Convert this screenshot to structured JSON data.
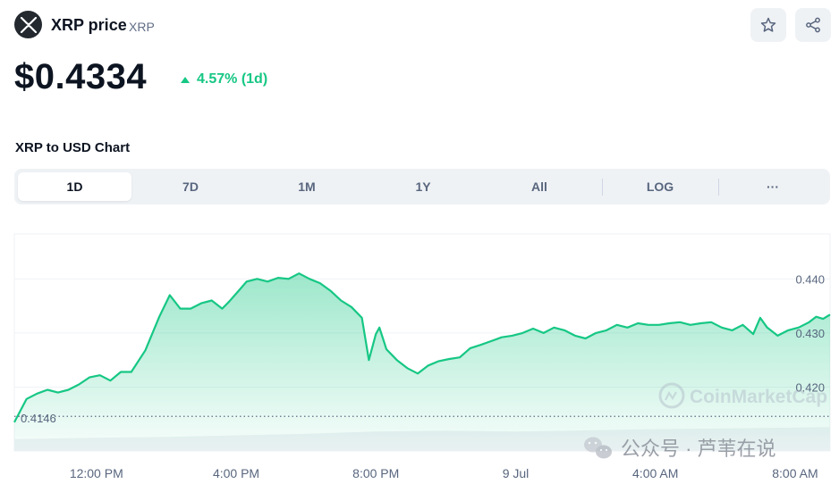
{
  "header": {
    "coin_name": "XRP price",
    "coin_symbol": "XRP",
    "logo_icon": "xrp-logo-icon",
    "star_icon": "star-icon",
    "share_icon": "share-icon"
  },
  "price": {
    "value": "$0.4334",
    "change": "4.57% (1d)",
    "change_color": "#16c784"
  },
  "chart_section": {
    "title": "XRP to USD Chart",
    "tabs": [
      "1D",
      "7D",
      "1M",
      "1Y",
      "All",
      "LOG",
      "···"
    ],
    "active_tab": "1D"
  },
  "watermark": "CoinMarketCap",
  "overlay_caption": "公众号 · 芦苇在说",
  "chart_data": {
    "type": "area",
    "line_color": "#16c784",
    "y_ticks": [
      "0.440",
      "0.430",
      "0.420"
    ],
    "y_tick_values": [
      0.44,
      0.43,
      0.42
    ],
    "ylim": [
      0.4082,
      0.4483
    ],
    "open_price": 0.4146,
    "open_price_label": "0.4146",
    "x_ticks": [
      "12:00 PM",
      "4:00 PM",
      "8:00 PM",
      "9 Jul",
      "4:00 AM",
      "8:00 AM"
    ],
    "x_tick_hours": [
      12,
      16,
      20,
      24,
      28,
      32
    ],
    "xlim": [
      9.65,
      33.0
    ],
    "grid": true,
    "series": [
      {
        "x": [
          9.65,
          10.0,
          10.3,
          10.6,
          10.9,
          11.2,
          11.5,
          11.8,
          12.1,
          12.4,
          12.7,
          13.0,
          13.4,
          13.8,
          14.1,
          14.4,
          14.7,
          15.0,
          15.3,
          15.6,
          15.8,
          16.1,
          16.3,
          16.6,
          16.9,
          17.2,
          17.5,
          17.8,
          18.1,
          18.4,
          18.7,
          19.0,
          19.3,
          19.6,
          19.8,
          20.0,
          20.1,
          20.3,
          20.6,
          20.9,
          21.2,
          21.5,
          21.8,
          22.1,
          22.4,
          22.7,
          23.0,
          23.3,
          23.6,
          23.9,
          24.2,
          24.5,
          24.8,
          25.1,
          25.4,
          25.7,
          26.0,
          26.3,
          26.6,
          26.9,
          27.2,
          27.5,
          27.8,
          28.1,
          28.4,
          28.7,
          29.0,
          29.3,
          29.6,
          29.9,
          30.2,
          30.5,
          30.8,
          31.0,
          31.2,
          31.5,
          31.8,
          32.1,
          32.4,
          32.6,
          32.8,
          33.0
        ],
        "y": [
          0.4135,
          0.4178,
          0.4188,
          0.4195,
          0.419,
          0.4195,
          0.4205,
          0.4218,
          0.4222,
          0.4212,
          0.4228,
          0.4228,
          0.4268,
          0.433,
          0.437,
          0.4345,
          0.4345,
          0.4355,
          0.436,
          0.4345,
          0.4358,
          0.438,
          0.4395,
          0.44,
          0.4395,
          0.4402,
          0.44,
          0.441,
          0.44,
          0.4392,
          0.4378,
          0.436,
          0.4348,
          0.4328,
          0.425,
          0.4298,
          0.431,
          0.427,
          0.425,
          0.4235,
          0.4225,
          0.424,
          0.4248,
          0.4252,
          0.4255,
          0.4272,
          0.4278,
          0.4285,
          0.4292,
          0.4295,
          0.43,
          0.4308,
          0.43,
          0.431,
          0.4305,
          0.4295,
          0.429,
          0.43,
          0.4305,
          0.4315,
          0.431,
          0.4318,
          0.4315,
          0.4315,
          0.4318,
          0.432,
          0.4315,
          0.4318,
          0.432,
          0.431,
          0.4305,
          0.4315,
          0.4298,
          0.4328,
          0.431,
          0.4295,
          0.4305,
          0.431,
          0.432,
          0.433,
          0.4326,
          0.4334
        ]
      }
    ],
    "volume_x": [
      9.65,
      12.0,
      14.0,
      16.0,
      18.0,
      20.0,
      22.0,
      24.0,
      26.0,
      28.0,
      30.0,
      32.0,
      33.0
    ],
    "volume_level": [
      0.38,
      0.42,
      0.45,
      0.5,
      0.55,
      0.62,
      0.65,
      0.62,
      0.66,
      0.7,
      0.72,
      0.75,
      0.76
    ]
  }
}
